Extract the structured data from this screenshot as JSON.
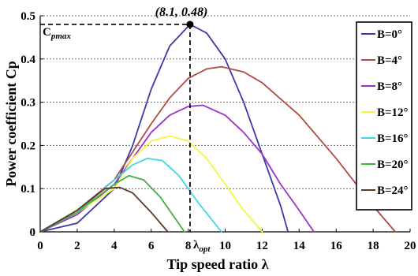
{
  "chart_data": {
    "type": "line",
    "xlabel": "Tip speed ratio λ",
    "ylabel": "Power coefficient Cp",
    "xlim": [
      0,
      20
    ],
    "ylim": [
      0,
      0.5
    ],
    "x_ticks": [
      0,
      2,
      4,
      6,
      8,
      10,
      12,
      14,
      16,
      18,
      20
    ],
    "y_ticks": [
      0,
      0.1,
      0.2,
      0.3,
      0.4,
      0.5
    ],
    "x_tick_labels": [
      "0",
      "2",
      "4",
      "6",
      "8",
      "10",
      "12",
      "14",
      "16",
      "18",
      "20"
    ],
    "y_tick_labels": [
      "0",
      "0.1",
      "0.2",
      "0.3",
      "0.4",
      "0.5"
    ],
    "grid": "horizontal dotted",
    "legend_position": "right",
    "series": [
      {
        "name": "B=0°",
        "color": "#3a3aa8",
        "points": [
          [
            0,
            0
          ],
          [
            2,
            0.02
          ],
          [
            4,
            0.1
          ],
          [
            5,
            0.2
          ],
          [
            6,
            0.33
          ],
          [
            7,
            0.43
          ],
          [
            8.1,
            0.48
          ],
          [
            9,
            0.46
          ],
          [
            10,
            0.4
          ],
          [
            11,
            0.3
          ],
          [
            12,
            0.18
          ],
          [
            13,
            0.06
          ],
          [
            13.4,
            0
          ]
        ]
      },
      {
        "name": "B=4°",
        "color": "#b34a42",
        "points": [
          [
            0,
            0
          ],
          [
            2,
            0.05
          ],
          [
            4,
            0.12
          ],
          [
            6,
            0.25
          ],
          [
            7,
            0.31
          ],
          [
            8,
            0.355
          ],
          [
            9,
            0.377
          ],
          [
            9.8,
            0.382
          ],
          [
            11,
            0.37
          ],
          [
            12,
            0.345
          ],
          [
            14,
            0.27
          ],
          [
            16,
            0.17
          ],
          [
            18,
            0.06
          ],
          [
            19.2,
            0
          ]
        ]
      },
      {
        "name": "B=8°",
        "color": "#9933cc",
        "points": [
          [
            0,
            0
          ],
          [
            2,
            0.04
          ],
          [
            4,
            0.11
          ],
          [
            5,
            0.17
          ],
          [
            6,
            0.23
          ],
          [
            7,
            0.27
          ],
          [
            8,
            0.29
          ],
          [
            8.8,
            0.293
          ],
          [
            10,
            0.27
          ],
          [
            11,
            0.23
          ],
          [
            12,
            0.18
          ],
          [
            13,
            0.11
          ],
          [
            14,
            0.05
          ],
          [
            14.8,
            0
          ]
        ]
      },
      {
        "name": "B=12°",
        "color": "#f5f542",
        "points": [
          [
            0,
            0
          ],
          [
            2,
            0.045
          ],
          [
            4,
            0.1
          ],
          [
            5,
            0.17
          ],
          [
            6,
            0.21
          ],
          [
            7,
            0.222
          ],
          [
            8,
            0.21
          ],
          [
            9,
            0.17
          ],
          [
            10,
            0.11
          ],
          [
            11,
            0.05
          ],
          [
            12,
            0
          ]
        ]
      },
      {
        "name": "B=16°",
        "color": "#40d6e0",
        "points": [
          [
            0,
            0
          ],
          [
            2,
            0.045
          ],
          [
            4,
            0.12
          ],
          [
            5,
            0.155
          ],
          [
            5.8,
            0.17
          ],
          [
            6.6,
            0.165
          ],
          [
            7.5,
            0.13
          ],
          [
            8.5,
            0.07
          ],
          [
            9.8,
            0
          ]
        ]
      },
      {
        "name": "B=20°",
        "color": "#40b040",
        "points": [
          [
            0,
            0
          ],
          [
            2,
            0.045
          ],
          [
            4,
            0.11
          ],
          [
            4.8,
            0.13
          ],
          [
            5.6,
            0.12
          ],
          [
            6.5,
            0.08
          ],
          [
            7.8,
            0
          ]
        ]
      },
      {
        "name": "B=24°",
        "color": "#5c3a28",
        "points": [
          [
            0,
            0
          ],
          [
            2,
            0.05
          ],
          [
            3.5,
            0.1
          ],
          [
            4.3,
            0.103
          ],
          [
            5,
            0.09
          ],
          [
            6,
            0.045
          ],
          [
            6.9,
            0
          ]
        ]
      }
    ],
    "annotations": {
      "peak_point": [
        8.1,
        0.48
      ],
      "peak_label": "(8.1, 0.48)",
      "cpmax_label_main": "C",
      "cpmax_label_sub": "pmax",
      "lambda_opt_main": "λ",
      "lambda_opt_sub": "opt"
    }
  }
}
